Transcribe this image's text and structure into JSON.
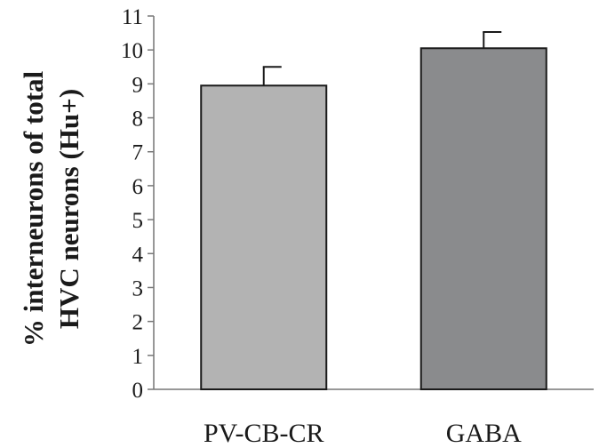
{
  "chart_data": {
    "type": "bar",
    "categories": [
      "PV-CB-CR",
      "GABA"
    ],
    "values": [
      8.95,
      10.05
    ],
    "errors": [
      0.55,
      0.48
    ],
    "bar_colors": [
      "#b3b3b3",
      "#8a8b8d"
    ],
    "title": "",
    "xlabel": "",
    "ylabel_lines": [
      "% interneurons of total",
      "HVC neurons (Hu+)"
    ],
    "ylim": [
      0,
      11
    ],
    "yticks": [
      0,
      1,
      2,
      3,
      4,
      5,
      6,
      7,
      8,
      9,
      10,
      11
    ],
    "grid": false,
    "legend": "none"
  }
}
